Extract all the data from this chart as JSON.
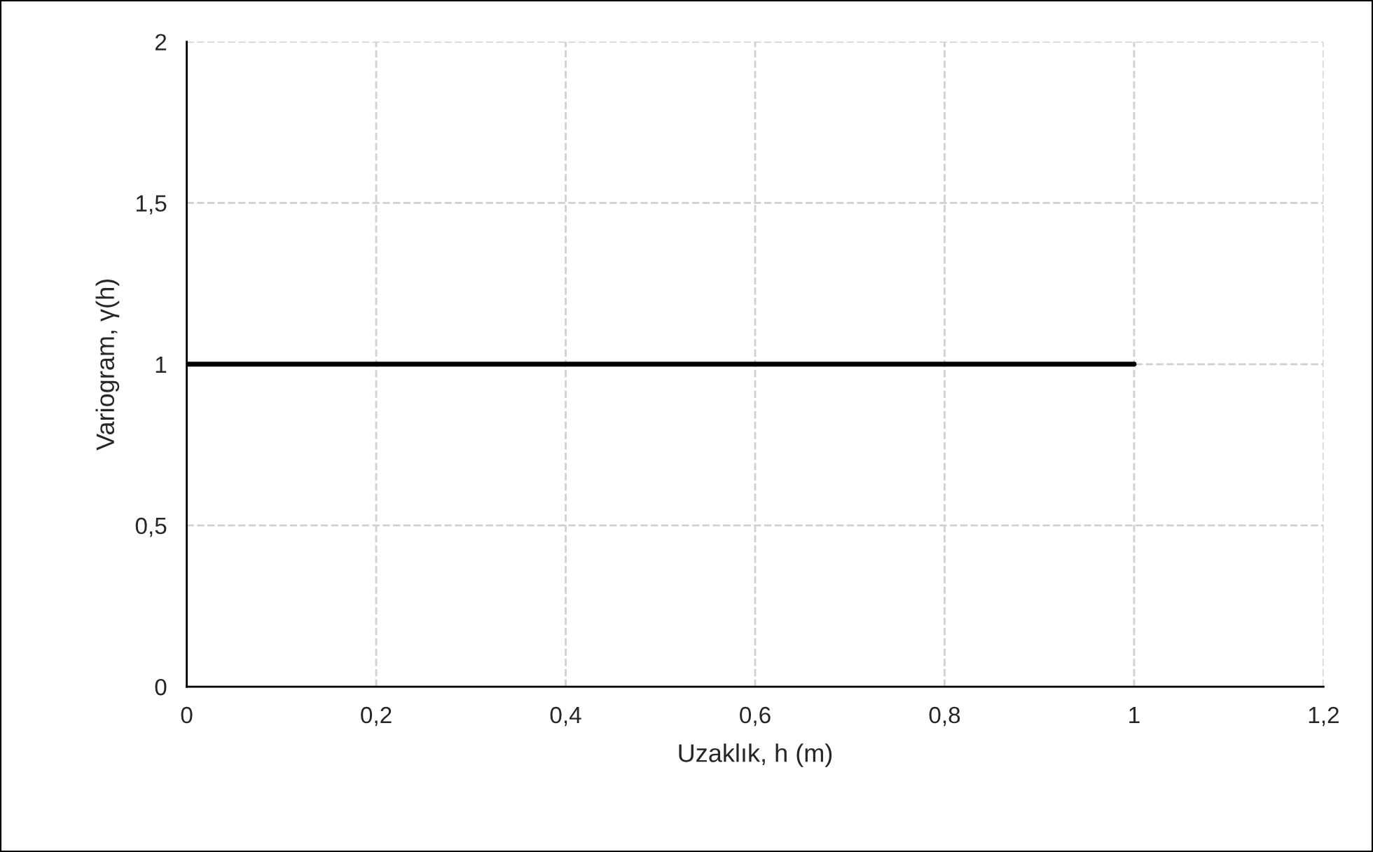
{
  "chart_data": {
    "type": "line",
    "xlabel": "Uzaklık, h (m)",
    "ylabel": "Variogram, γ(h)",
    "series": [
      {
        "color": "#000000",
        "x": [
          0,
          1
        ],
        "values": [
          1,
          1
        ]
      }
    ],
    "xlim": [
      0,
      1.2
    ],
    "xticks": [
      0,
      {
        "value": 0.2,
        "label": "0,2"
      },
      {
        "value": 0.4,
        "label": "0,4"
      },
      {
        "value": 0.6,
        "label": "0,6"
      },
      {
        "value": 0.8,
        "label": "0,8"
      },
      1,
      {
        "value": 1.2,
        "label": "1,2"
      }
    ],
    "ylim": [
      0,
      2
    ],
    "yticks": [
      0,
      {
        "value": 0.5,
        "label": "0,5"
      },
      1,
      {
        "value": 1.5,
        "label": "1,5"
      },
      2
    ],
    "grid": true,
    "marker": "none",
    "line_style": "solid"
  }
}
